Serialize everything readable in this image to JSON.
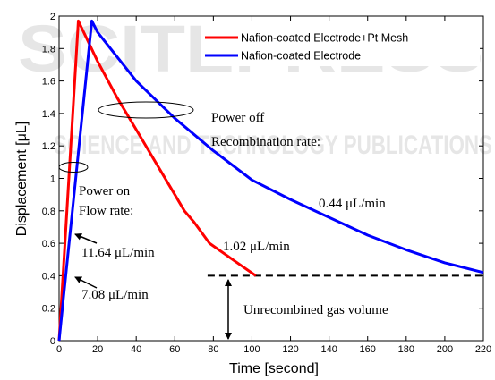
{
  "chart_data": {
    "type": "line",
    "title": "",
    "xlabel": "Time [second]",
    "ylabel": "Displacement [μL]",
    "xlim": [
      0,
      220
    ],
    "ylim": [
      0,
      2
    ],
    "xticks": [
      0,
      20,
      40,
      60,
      80,
      100,
      120,
      140,
      160,
      180,
      200,
      220
    ],
    "yticks": [
      0,
      0.2,
      0.4,
      0.6,
      0.8,
      1,
      1.2,
      1.4,
      1.6,
      1.8,
      2
    ],
    "ytick_labels": [
      "0",
      "0.2",
      "0.4",
      "0.6",
      "0.8",
      "1",
      "1.2",
      "1.4",
      "1.6",
      "1.8",
      "2"
    ],
    "grid": false,
    "legend_position": "top-right",
    "series": [
      {
        "name": "Nafion-coated Electrode+Pt Mesh",
        "color": "#ff0000",
        "x": [
          0,
          10,
          20,
          30,
          40,
          50,
          60,
          65,
          70,
          78,
          90,
          102
        ],
        "y": [
          0,
          1.97,
          1.72,
          1.5,
          1.3,
          1.1,
          0.9,
          0.8,
          0.73,
          0.6,
          0.5,
          0.4
        ]
      },
      {
        "name": "Nafion-coated Electrode",
        "color": "#0000ff",
        "x": [
          0,
          17,
          20,
          40,
          60,
          80,
          100,
          120,
          140,
          160,
          180,
          200,
          220
        ],
        "y": [
          0,
          1.97,
          1.9,
          1.6,
          1.37,
          1.17,
          0.99,
          0.87,
          0.76,
          0.65,
          0.56,
          0.48,
          0.42
        ]
      }
    ],
    "reference_line": {
      "y": 0.4,
      "x_start": 77,
      "x_end": 220,
      "color": "#000000",
      "style": "dashed"
    },
    "annotations": {
      "power_off": "Power off",
      "recombination_rate": "Recombination rate:",
      "power_on": "Power on",
      "flow_rate": "Flow rate:",
      "flow_red": "11.64 μL/min",
      "flow_blue": "7.08 μL/min",
      "recomb_red": "1.02 μL/min",
      "recomb_blue": "0.44 μL/min",
      "unrecombined": "Unrecombined gas volume"
    },
    "watermark": [
      "SCITEPRESS",
      "SCIENCE AND TECHNOLOGY PUBLICATIONS"
    ]
  }
}
